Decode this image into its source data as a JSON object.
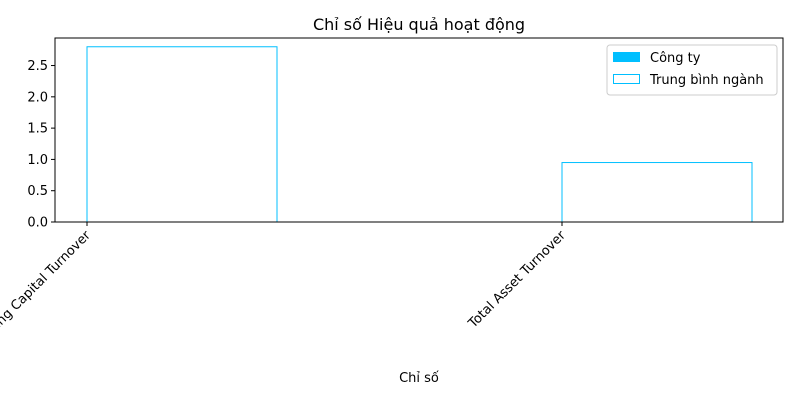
{
  "chart_data": {
    "type": "bar",
    "title": "Chỉ số Hiệu quả hoạt động",
    "xlabel": "Chỉ số",
    "ylabel": "",
    "categories": [
      "Working Capital Turnover",
      "Total Asset Turnover"
    ],
    "series": [
      {
        "name": "Công ty",
        "values": [
          0.0,
          0.0
        ],
        "style": "filled",
        "color": "#00bfff"
      },
      {
        "name": "Trung bình ngành",
        "values": [
          2.8,
          0.95
        ],
        "style": "outline",
        "color": "#00bfff"
      }
    ],
    "ylim": [
      0,
      2.94
    ],
    "yticks": [
      0.0,
      0.5,
      1.0,
      1.5,
      2.0,
      2.5
    ],
    "ytick_labels": [
      "0.0",
      "0.5",
      "1.0",
      "1.5",
      "2.0",
      "2.5"
    ],
    "grid": false,
    "legend_position": "top-right"
  }
}
